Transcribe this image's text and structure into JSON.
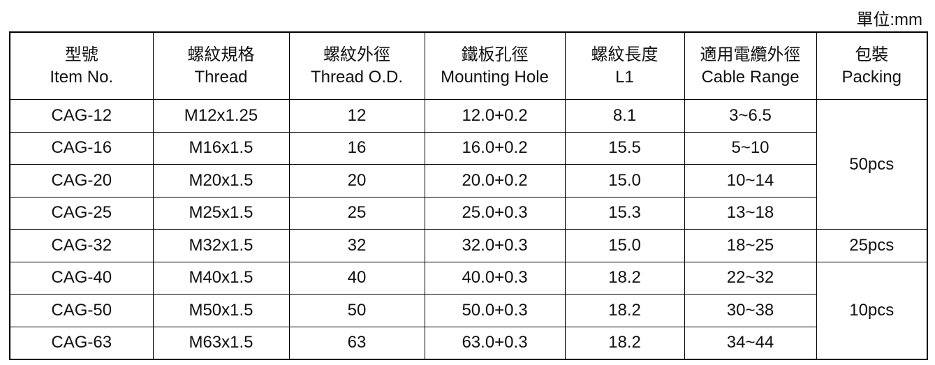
{
  "unit": "單位:mm",
  "table": {
    "header": [
      [
        "型號",
        "Item No."
      ],
      [
        "螺紋規格",
        "Thread"
      ],
      [
        "螺紋外徑",
        "Thread O.D."
      ],
      [
        "鐵板孔徑",
        "Mounting Hole"
      ],
      [
        "螺紋長度",
        "L1"
      ],
      [
        "適用電纜外徑",
        "Cable Range"
      ],
      [
        "包裝",
        "Packing"
      ]
    ],
    "rows": [
      [
        "CAG-12",
        "M12x1.25",
        "12",
        "12.0+0.2",
        "8.1",
        "3~6.5",
        "50pcs"
      ],
      [
        "CAG-16",
        "M16x1.5",
        "16",
        "16.0+0.2",
        "15.5",
        "5~10",
        null
      ],
      [
        "CAG-20",
        "M20x1.5",
        "20",
        "20.0+0.2",
        "15.0",
        "10~14",
        null
      ],
      [
        "CAG-25",
        "M25x1.5",
        "25",
        "25.0+0.3",
        "15.3",
        "13~18",
        null
      ],
      [
        "CAG-32",
        "M32x1.5",
        "32",
        "32.0+0.3",
        "15.0",
        "18~25",
        "25pcs"
      ],
      [
        "CAG-40",
        "M40x1.5",
        "40",
        "40.0+0.3",
        "18.2",
        "22~32",
        "10pcs"
      ],
      [
        "CAG-50",
        "M50x1.5",
        "50",
        "50.0+0.3",
        "18.2",
        "30~38",
        null
      ],
      [
        "CAG-63",
        "M63x1.5",
        "63",
        "63.0+0.3",
        "18.2",
        "34~44",
        null
      ]
    ]
  }
}
